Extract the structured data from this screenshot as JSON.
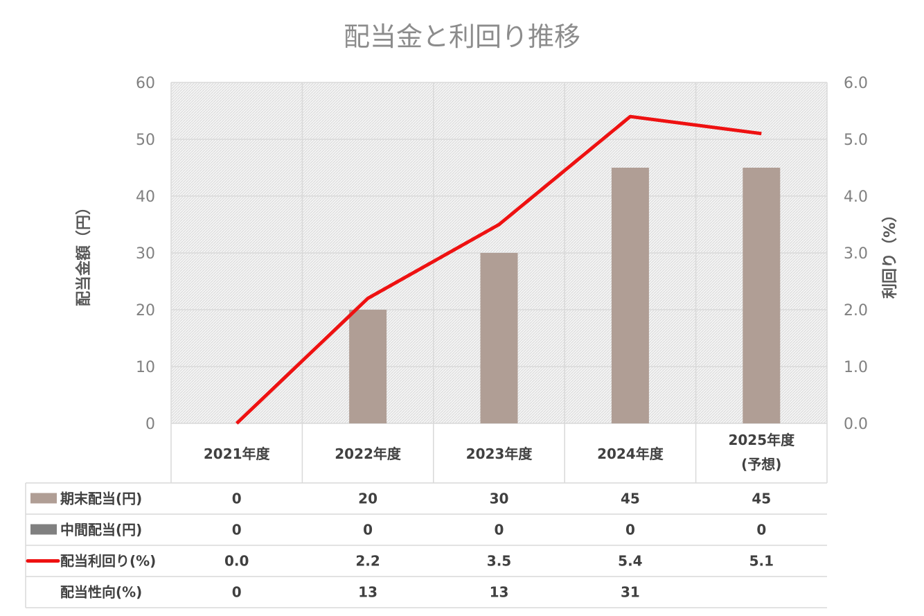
{
  "chart_data": {
    "type": "bar",
    "title": "配当金と利回り推移",
    "ylabel": "配当金額（円）",
    "y2label": "利回り（%）",
    "ylim": [
      0,
      60
    ],
    "y2lim": [
      0,
      6
    ],
    "yticks": [
      "0",
      "10",
      "20",
      "30",
      "40",
      "50",
      "60"
    ],
    "y2ticks": [
      "0.0",
      "1.0",
      "2.0",
      "3.0",
      "4.0",
      "5.0",
      "6.0"
    ],
    "grid": true,
    "categories": [
      [
        "2021年度"
      ],
      [
        "2022年度"
      ],
      [
        "2023年度"
      ],
      [
        "2024年度"
      ],
      [
        "2025年度",
        "(予想)"
      ]
    ],
    "series": [
      {
        "name": "期末配当(円)",
        "kind": "bar",
        "axis": "left",
        "color": "#b09e95",
        "values": [
          0,
          20,
          30,
          45,
          45
        ],
        "labels": [
          "0",
          "20",
          "30",
          "45",
          "45"
        ]
      },
      {
        "name": "中間配当(円)",
        "kind": "bar",
        "axis": "left",
        "color": "#808080",
        "values": [
          0,
          0,
          0,
          0,
          0
        ],
        "labels": [
          "0",
          "0",
          "0",
          "0",
          "0"
        ]
      },
      {
        "name": "配当利回り(%)",
        "kind": "line",
        "axis": "right",
        "color": "#ee1111",
        "values": [
          0.0,
          2.2,
          3.5,
          5.4,
          5.1
        ],
        "labels": [
          "0.0",
          "2.2",
          "3.5",
          "5.4",
          "5.1"
        ]
      }
    ],
    "table_extra_rows": [
      {
        "name": "配当性向(%)",
        "labels": [
          "0",
          "13",
          "13",
          "31",
          ""
        ]
      }
    ]
  }
}
